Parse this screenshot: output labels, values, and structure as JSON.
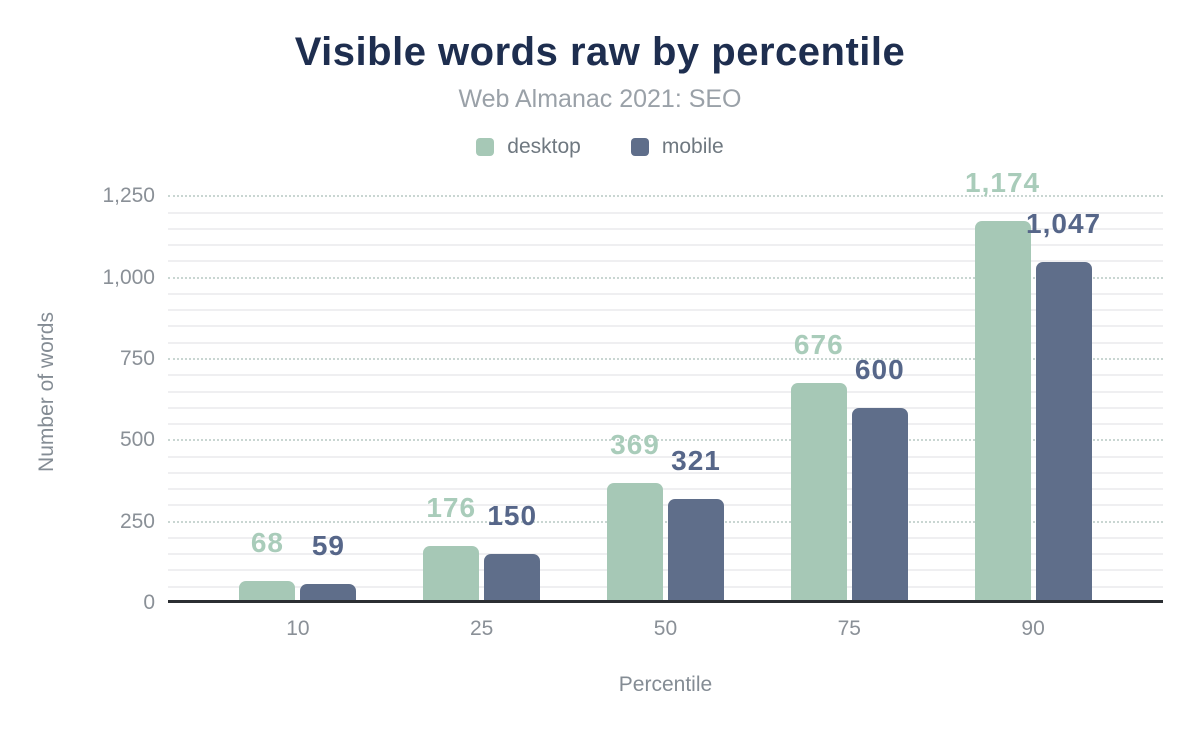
{
  "colors": {
    "background": "#ffffff",
    "title": "#1e2e4f",
    "subtitle": "#9aa1a8",
    "axis_text": "#8a9097",
    "axis_title_text": "#848c94",
    "legend_text": "#6f7880",
    "baseline": "#2b2e32",
    "gridline_major_dotted": "#c9d6d2",
    "gridline_minor": "#efeff1",
    "desktop": "#a6c8b6",
    "mobile": "#5f6e8a"
  },
  "chart_data": {
    "type": "bar",
    "title": "Visible words raw by percentile",
    "subtitle": "Web Almanac 2021: SEO",
    "xlabel": "Percentile",
    "ylabel": "Number of words",
    "categories": [
      "10",
      "25",
      "50",
      "75",
      "90"
    ],
    "series": [
      {
        "name": "desktop",
        "color": "#a6c8b6",
        "label_color": "#a9ccba",
        "values": [
          68,
          176,
          369,
          676,
          1174
        ],
        "value_labels": [
          "68",
          "176",
          "369",
          "676",
          "1,174"
        ]
      },
      {
        "name": "mobile",
        "color": "#5f6e8a",
        "label_color": "#566689",
        "values": [
          59,
          150,
          321,
          600,
          1047
        ],
        "value_labels": [
          "59",
          "150",
          "321",
          "600",
          "1,047"
        ]
      }
    ],
    "ylim": [
      0,
      1300
    ],
    "yticks": [
      {
        "value": 0,
        "label": "0"
      },
      {
        "value": 250,
        "label": "250"
      },
      {
        "value": 500,
        "label": "500"
      },
      {
        "value": 750,
        "label": "750"
      },
      {
        "value": 1000,
        "label": "1,000"
      },
      {
        "value": 1250,
        "label": "1,250"
      }
    ],
    "major_unit": 250,
    "minor_unit": 50,
    "grid": true,
    "legend_position": "top"
  }
}
